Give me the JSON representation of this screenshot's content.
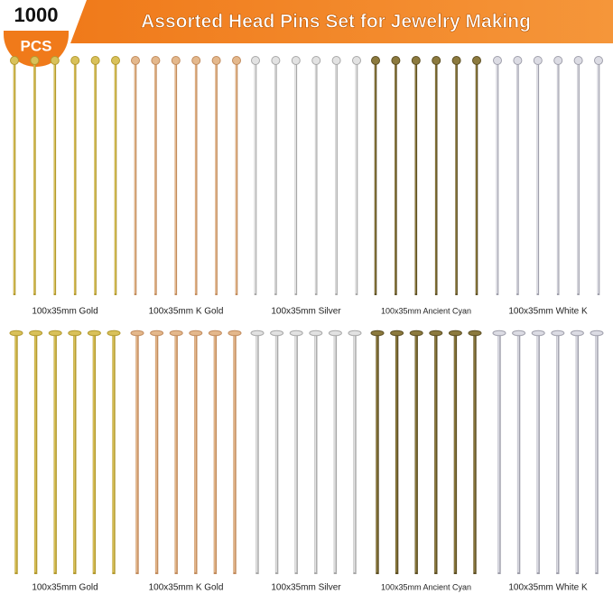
{
  "badge": {
    "count": "1000",
    "unit": "PCS"
  },
  "header": {
    "title": "Assorted Head Pins Set for Jewelry Making"
  },
  "top_row": {
    "labels": [
      "100x35mm Gold",
      "100x35mm K Gold",
      "100x35mm Silver",
      "100x35mm Ancient Cyan",
      "100x35mm White K"
    ]
  },
  "bottom_row": {
    "labels": [
      "100x35mm Gold",
      "100x35mm K Gold",
      "100x35mm Silver",
      "100x35mm Ancient Cyan",
      "100x35mm White K"
    ]
  }
}
